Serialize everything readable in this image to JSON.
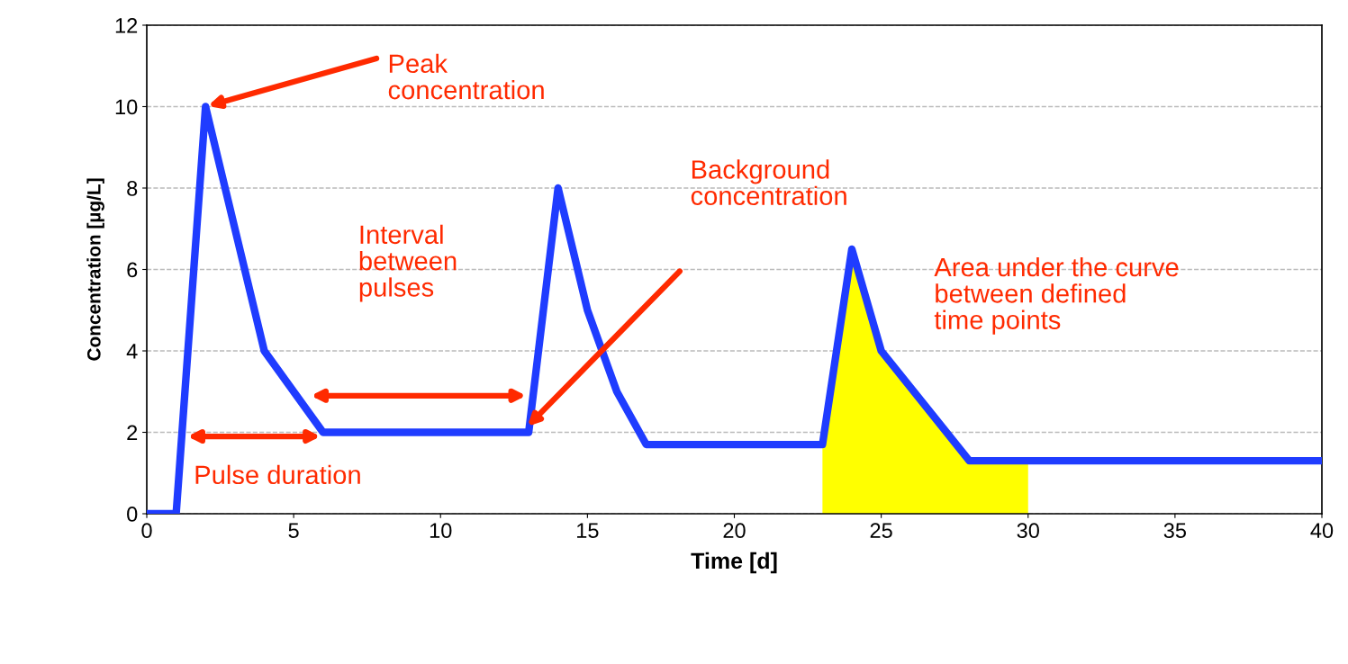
{
  "chart_data": {
    "type": "line",
    "xlabel": "Time [d]",
    "ylabel": "Concentration [µg/L]",
    "xlim": [
      0,
      40
    ],
    "xticks": [
      0,
      5,
      10,
      15,
      20,
      25,
      30,
      35,
      40
    ],
    "ylim": [
      0,
      12
    ],
    "yticks": [
      0,
      2,
      4,
      6,
      8,
      10,
      12
    ],
    "grid": "y",
    "marker": "none",
    "line_style": "solid",
    "series": [
      {
        "type": "area",
        "color": "#ffff00",
        "x": [
          23,
          24,
          25,
          28,
          30
        ],
        "values": [
          1.7,
          6.5,
          4,
          1.3,
          1.3
        ]
      },
      {
        "color": "#1f3cff",
        "x": [
          0,
          1,
          2,
          4,
          6,
          13,
          14,
          15,
          16,
          17,
          23,
          24,
          25,
          28,
          40
        ],
        "values": [
          0,
          0,
          10,
          4,
          2,
          2,
          8,
          5,
          3,
          1.7,
          1.7,
          6.5,
          4,
          1.3,
          1.3
        ]
      }
    ],
    "annotations": [
      "Peak\nconcentration",
      "Interval\nbetween\npulses",
      "Background\nconcentration",
      "Area under the curve\nbetween defined\ntime points",
      "Pulse duration"
    ]
  }
}
